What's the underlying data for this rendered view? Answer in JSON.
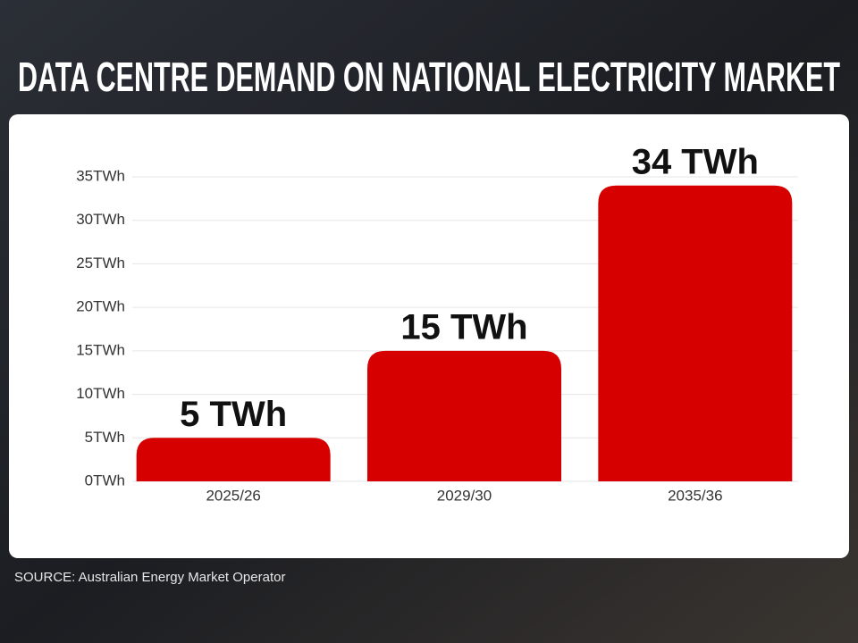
{
  "chart_data": {
    "type": "bar",
    "title": "DATA CENTRE DEMAND ON NATIONAL ELECTRICITY MARKET",
    "source": "SOURCE: Australian Energy Market Operator",
    "categories": [
      "2025/26",
      "2029/30",
      "2035/36"
    ],
    "values": [
      5,
      15,
      34
    ],
    "value_labels": [
      "5 TWh",
      "15 TWh",
      "34 TWh"
    ],
    "color": "#d60000",
    "ylim": [
      0,
      35
    ],
    "yticks": [
      {
        "value": 0,
        "label": "0TWh"
      },
      {
        "value": 5,
        "label": "5TWh"
      },
      {
        "value": 10,
        "label": "10TWh"
      },
      {
        "value": 15,
        "label": "15TWh"
      },
      {
        "value": 20,
        "label": "20TWh"
      },
      {
        "value": 25,
        "label": "25TWh"
      },
      {
        "value": 30,
        "label": "30TWh"
      },
      {
        "value": 35,
        "label": "35TWh"
      }
    ],
    "grid": true
  }
}
